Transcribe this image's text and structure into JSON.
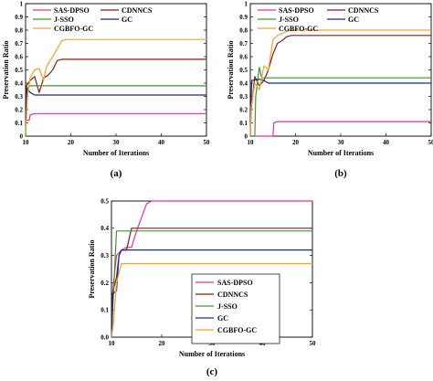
{
  "chart_data": [
    {
      "panel": "(a)",
      "type": "line",
      "xlabel": "Number of Iterations",
      "ylabel": "Preservation Ratio",
      "xlim": [
        10,
        50
      ],
      "ylim": [
        0,
        1.0
      ],
      "xticks": [
        10,
        20,
        30,
        40,
        50
      ],
      "yticks": [
        0,
        0.1,
        0.2,
        0.3,
        0.4,
        0.5,
        0.6,
        0.7,
        0.8,
        0.9,
        1.0
      ],
      "ytick_labels": [
        "0",
        "0.1",
        "0.2",
        "0.3",
        "0.4",
        "0.5",
        "0.6",
        "0.7",
        "0.8",
        "0.9",
        "1"
      ],
      "legend": "top, two columns",
      "series": [
        {
          "name": "SAS-DPSO",
          "color": "#e0309f",
          "points": [
            [
              10,
              0
            ],
            [
              10.1,
              0.12
            ],
            [
              10.8,
              0.12
            ],
            [
              11,
              0.16
            ],
            [
              12,
              0.17
            ],
            [
              50,
              0.17
            ]
          ]
        },
        {
          "name": "CDNNCS",
          "color": "#8b1a1a",
          "points": [
            [
              10,
              0
            ],
            [
              10.2,
              0.38
            ],
            [
              11,
              0.42
            ],
            [
              12,
              0.45
            ],
            [
              13,
              0.33
            ],
            [
              14,
              0.44
            ],
            [
              15,
              0.46
            ],
            [
              16,
              0.5
            ],
            [
              17,
              0.57
            ],
            [
              18,
              0.58
            ],
            [
              50,
              0.58
            ]
          ]
        },
        {
          "name": "J-SSO",
          "color": "#3a9a30",
          "points": [
            [
              10,
              0
            ],
            [
              10.3,
              0.36
            ],
            [
              11,
              0.38
            ],
            [
              50,
              0.38
            ]
          ]
        },
        {
          "name": "GC",
          "color": "#1a2a8a",
          "points": [
            [
              10,
              0
            ],
            [
              10.3,
              0.36
            ],
            [
              11,
              0.33
            ],
            [
              12,
              0.31
            ],
            [
              50,
              0.31
            ]
          ]
        },
        {
          "name": "CGBFO-GC",
          "color": "#f5a030",
          "points": [
            [
              10,
              0
            ],
            [
              10.4,
              0.3
            ],
            [
              11,
              0.44
            ],
            [
              12,
              0.5
            ],
            [
              13,
              0.51
            ],
            [
              14,
              0.42
            ],
            [
              14.5,
              0.51
            ],
            [
              15,
              0.55
            ],
            [
              16,
              0.6
            ],
            [
              17,
              0.66
            ],
            [
              18,
              0.72
            ],
            [
              19,
              0.73
            ],
            [
              50,
              0.73
            ]
          ]
        }
      ]
    },
    {
      "panel": "(b)",
      "type": "line",
      "xlabel": "Number of Iterations",
      "ylabel": "Preservation Ratio",
      "xlim": [
        10,
        50
      ],
      "ylim": [
        0,
        1.0
      ],
      "xticks": [
        10,
        20,
        30,
        40,
        50
      ],
      "yticks": [
        0,
        0.1,
        0.2,
        0.3,
        0.4,
        0.5,
        0.6,
        0.7,
        0.8,
        0.9,
        1.0
      ],
      "ytick_labels": [
        "0",
        "0.1",
        "0.2",
        "0.3",
        "0.4",
        "0.5",
        "0.6",
        "0.7",
        "0.8",
        "0.9",
        "1"
      ],
      "legend": "top, two columns",
      "series": [
        {
          "name": "SAS-DPSO",
          "color": "#e0309f",
          "points": [
            [
              10,
              0
            ],
            [
              15,
              0
            ],
            [
              15.2,
              0.1
            ],
            [
              16,
              0.11
            ],
            [
              50,
              0.11
            ]
          ]
        },
        {
          "name": "CDNNCS",
          "color": "#8b1a1a",
          "points": [
            [
              10,
              0
            ],
            [
              10.2,
              0.2
            ],
            [
              11,
              0.45
            ],
            [
              12,
              0.38
            ],
            [
              13,
              0.42
            ],
            [
              14,
              0.5
            ],
            [
              15,
              0.62
            ],
            [
              16,
              0.7
            ],
            [
              17,
              0.72
            ],
            [
              18,
              0.75
            ],
            [
              19,
              0.76
            ],
            [
              50,
              0.76
            ]
          ]
        },
        {
          "name": "J-SSO",
          "color": "#3a9a30",
          "points": [
            [
              10,
              0
            ],
            [
              11,
              0
            ],
            [
              11.2,
              0.3
            ],
            [
              12,
              0.52
            ],
            [
              12.5,
              0.44
            ],
            [
              50,
              0.44
            ]
          ]
        },
        {
          "name": "GC",
          "color": "#1a2a8a",
          "points": [
            [
              10,
              0
            ],
            [
              10.3,
              0.42
            ],
            [
              12,
              0.43
            ],
            [
              13,
              0.42
            ],
            [
              14,
              0.4
            ],
            [
              50,
              0.4
            ]
          ]
        },
        {
          "name": "CGBFO-GC",
          "color": "#f5a030",
          "points": [
            [
              10,
              0
            ],
            [
              10.2,
              0.22
            ],
            [
              11,
              0.4
            ],
            [
              12,
              0.35
            ],
            [
              13,
              0.53
            ],
            [
              14,
              0.5
            ],
            [
              15,
              0.73
            ],
            [
              16,
              0.76
            ],
            [
              18,
              0.79
            ],
            [
              19,
              0.8
            ],
            [
              50,
              0.8
            ]
          ]
        }
      ]
    },
    {
      "panel": "(c)",
      "type": "line",
      "xlabel": "Number of Iterations",
      "ylabel": "Preservation Ratio",
      "xlim": [
        10,
        50
      ],
      "ylim": [
        0,
        0.5
      ],
      "xticks": [
        10,
        20,
        30,
        40,
        50
      ],
      "yticks": [
        0,
        0.1,
        0.2,
        0.3,
        0.4,
        0.5
      ],
      "ytick_labels": [
        "0.0",
        "0.1",
        "0.2",
        "0.3",
        "0.4",
        "0.5"
      ],
      "legend": "center-right, one column",
      "series": [
        {
          "name": "SAS-DPSO",
          "color": "#e0309f",
          "points": [
            [
              10,
              0
            ],
            [
              10.3,
              0.18
            ],
            [
              11,
              0.3
            ],
            [
              12,
              0.32
            ],
            [
              13,
              0.33
            ],
            [
              14,
              0.33
            ],
            [
              15,
              0.39
            ],
            [
              16,
              0.44
            ],
            [
              17,
              0.49
            ],
            [
              18,
              0.5
            ],
            [
              50,
              0.5
            ]
          ]
        },
        {
          "name": "CDNNCS",
          "color": "#8b1a1a",
          "points": [
            [
              10,
              0
            ],
            [
              10.2,
              0.16
            ],
            [
              11,
              0.22
            ],
            [
              11.5,
              0.3
            ],
            [
              12,
              0.32
            ],
            [
              13,
              0.32
            ],
            [
              14,
              0.4
            ],
            [
              50,
              0.4
            ]
          ]
        },
        {
          "name": "J-SSO",
          "color": "#3a9a30",
          "points": [
            [
              10,
              0
            ],
            [
              10.5,
              0.2
            ],
            [
              11,
              0.39
            ],
            [
              50,
              0.39
            ]
          ]
        },
        {
          "name": "GC",
          "color": "#1a2a8a",
          "points": [
            [
              10,
              0
            ],
            [
              10.3,
              0.16
            ],
            [
              11,
              0.17
            ],
            [
              11.5,
              0.3
            ],
            [
              12,
              0.32
            ],
            [
              13,
              0.32
            ],
            [
              50,
              0.32
            ]
          ]
        },
        {
          "name": "CGBFO-GC",
          "color": "#f5a030",
          "points": [
            [
              10,
              0
            ],
            [
              10.4,
              0.05
            ],
            [
              11,
              0.2
            ],
            [
              12,
              0.27
            ],
            [
              50,
              0.27
            ]
          ]
        }
      ]
    }
  ]
}
